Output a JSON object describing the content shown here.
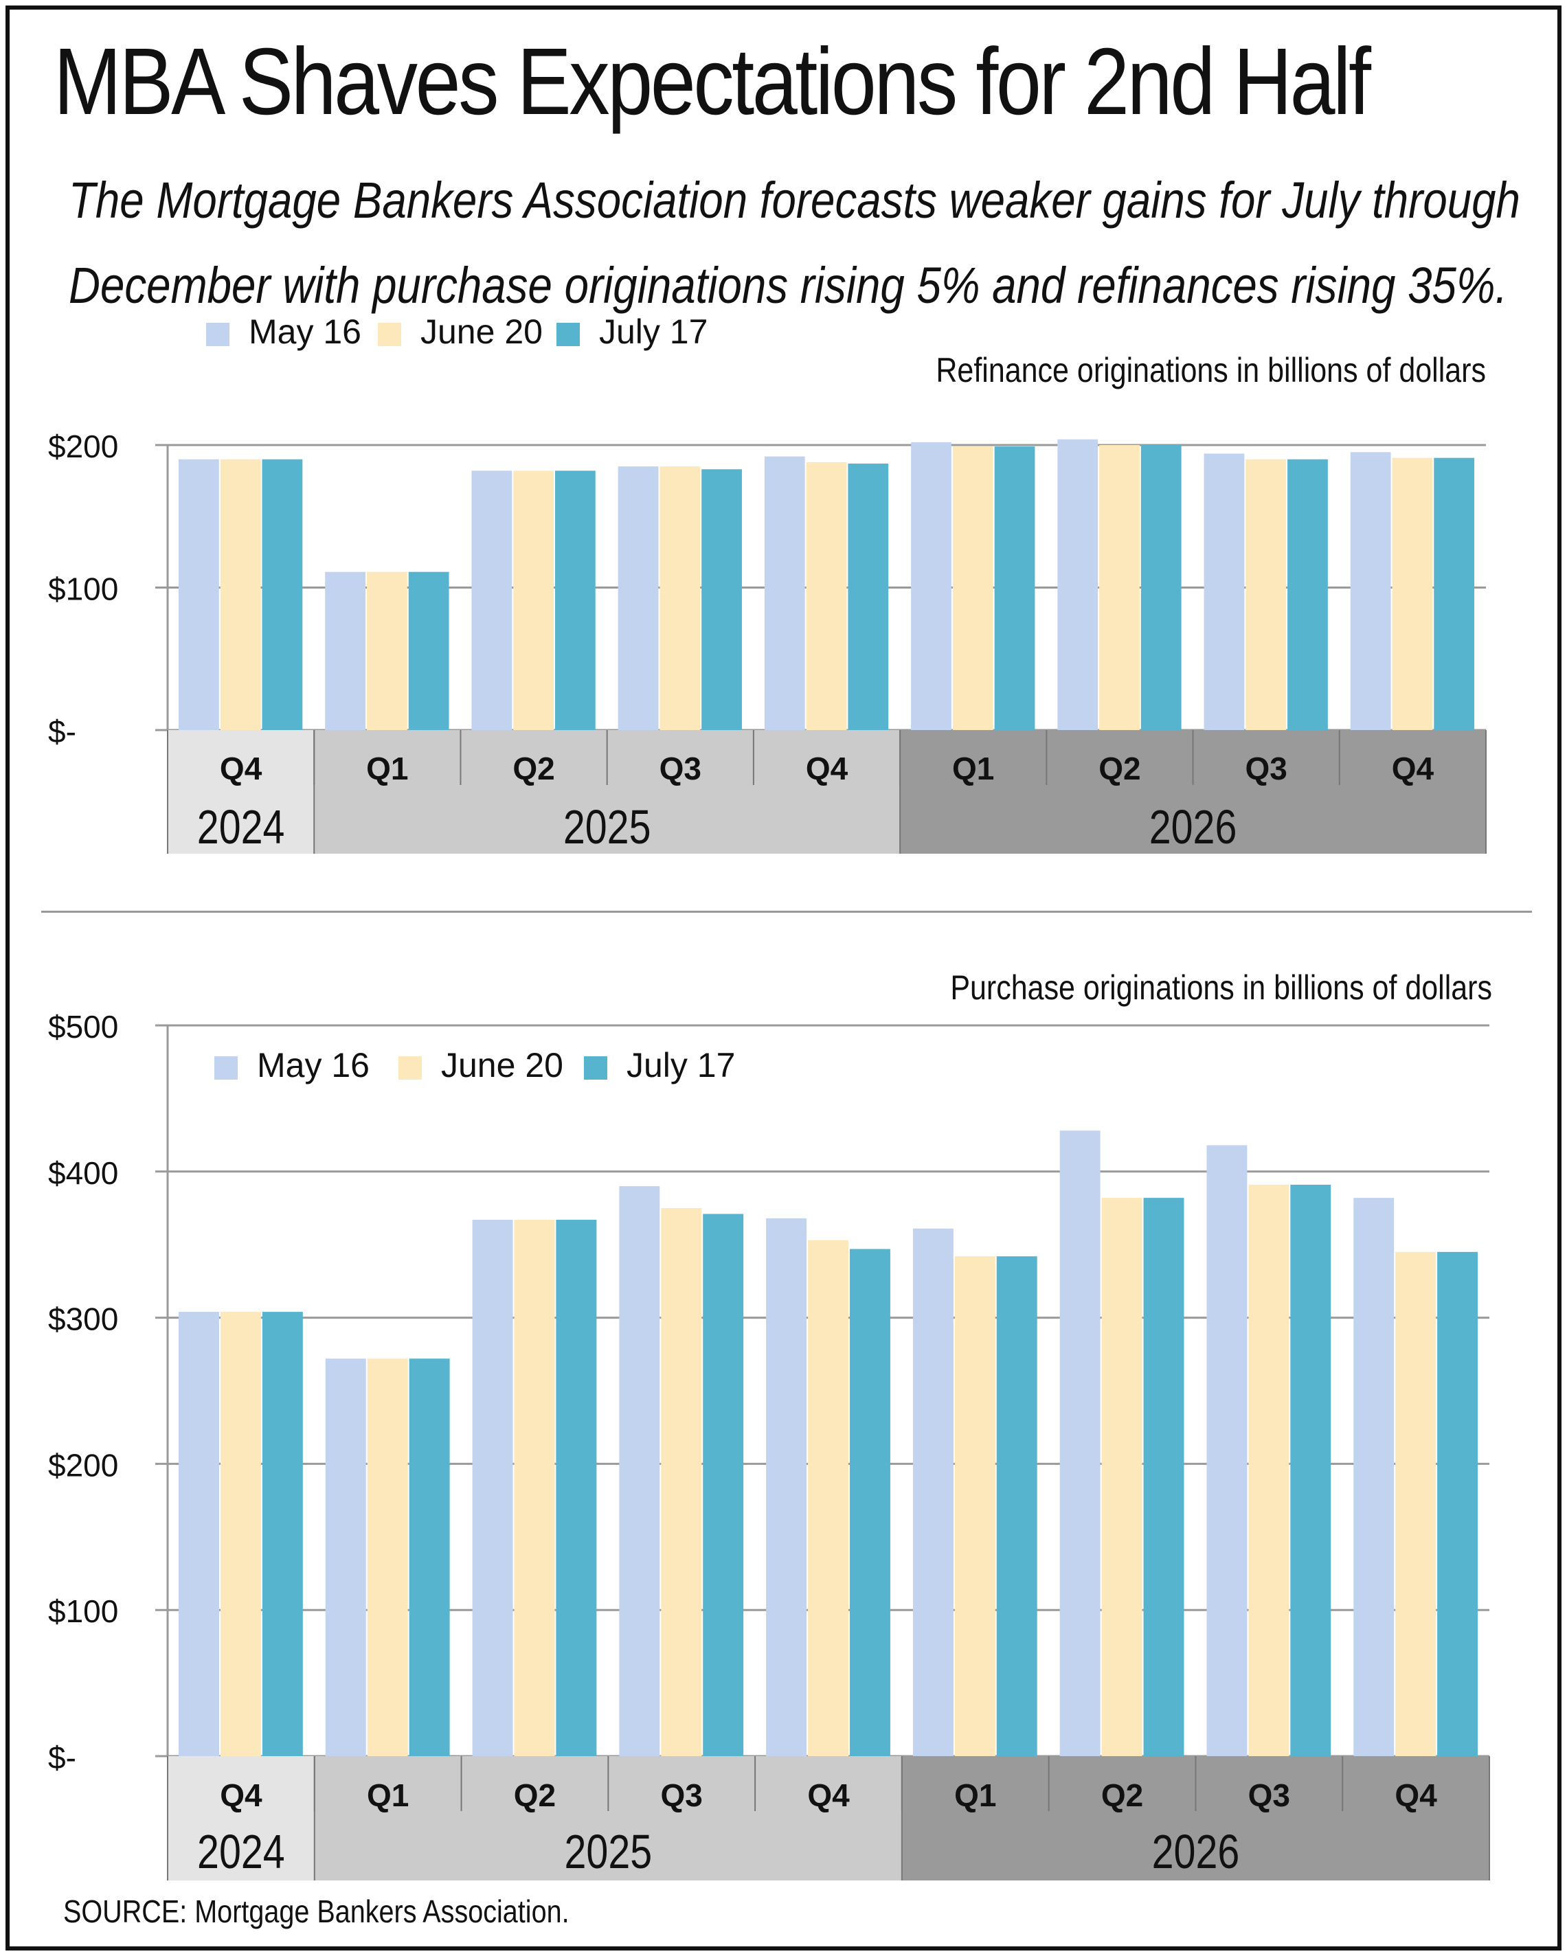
{
  "title": "MBA Shaves Expectations for 2nd Half",
  "subtitle_line1": "The Mortgage Bankers Association forecasts  weaker gains for July through",
  "subtitle_line2": "December with purchase originations rising 5% and refinances rising 35%.",
  "source": "SOURCE: Mortgage Bankers Association.",
  "colors": {
    "May 16": "#c2d3f0",
    "June 20": "#fde8bc",
    "July 17": "#56b4cf"
  },
  "chart_data": [
    {
      "type": "bar",
      "title": "Refinance originations in billions of dollars",
      "categories": [
        "Q4",
        "Q1",
        "Q2",
        "Q3",
        "Q4",
        "Q1",
        "Q2",
        "Q3",
        "Q4"
      ],
      "groups": [
        {
          "label": "2024",
          "count": 1,
          "color": "#e4e4e4"
        },
        {
          "label": "2025",
          "count": 4,
          "color": "#cbcbcb"
        },
        {
          "label": "2026",
          "count": 4,
          "color": "#9a9a9a"
        }
      ],
      "series": [
        {
          "name": "May 16",
          "values": [
            190,
            111,
            182,
            185,
            192,
            202,
            204,
            194,
            195
          ]
        },
        {
          "name": "June 20",
          "values": [
            190,
            111,
            182,
            185,
            188,
            199,
            200,
            190,
            191
          ]
        },
        {
          "name": "July 17",
          "values": [
            190,
            111,
            182,
            183,
            187,
            199,
            200,
            190,
            191
          ]
        }
      ],
      "yticks": [
        0,
        100,
        200
      ],
      "ytick_labels": [
        "$-",
        "$100",
        "$200"
      ],
      "ylim": [
        0,
        200
      ],
      "grid": true,
      "legend": "top-left"
    },
    {
      "type": "bar",
      "title": "Purchase originations in billions of dollars",
      "categories": [
        "Q4",
        "Q1",
        "Q2",
        "Q3",
        "Q4",
        "Q1",
        "Q2",
        "Q3",
        "Q4"
      ],
      "groups": [
        {
          "label": "2024",
          "count": 1,
          "color": "#e4e4e4"
        },
        {
          "label": "2025",
          "count": 4,
          "color": "#cbcbcb"
        },
        {
          "label": "2026",
          "count": 4,
          "color": "#9a9a9a"
        }
      ],
      "series": [
        {
          "name": "May 16",
          "values": [
            304,
            272,
            367,
            390,
            368,
            361,
            428,
            418,
            382
          ]
        },
        {
          "name": "June 20",
          "values": [
            304,
            272,
            367,
            375,
            353,
            342,
            382,
            391,
            345
          ]
        },
        {
          "name": "July 17",
          "values": [
            304,
            272,
            367,
            371,
            347,
            342,
            382,
            391,
            345
          ]
        }
      ],
      "yticks": [
        0,
        100,
        200,
        300,
        400,
        500
      ],
      "ytick_labels": [
        "$-",
        "$100",
        "$200",
        "$300",
        "$400",
        "$500"
      ],
      "ylim": [
        0,
        500
      ],
      "grid": true,
      "legend": "top-left"
    }
  ]
}
